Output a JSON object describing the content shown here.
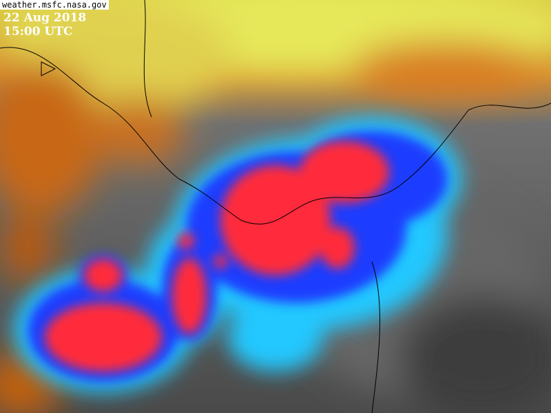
{
  "source": "weather.msfc.nasa.gov",
  "date": "22 Aug 2018",
  "time": "15:00 UTC",
  "colors": {
    "cold_cloud_top": "#ff2a3a",
    "cloud_blue": "#1e3cff",
    "cloud_cyan": "#22c8ff",
    "warm_land": "#e8e860",
    "hot_land": "#c85a10",
    "clear_gray": "#555555",
    "coastline": "#000000"
  }
}
